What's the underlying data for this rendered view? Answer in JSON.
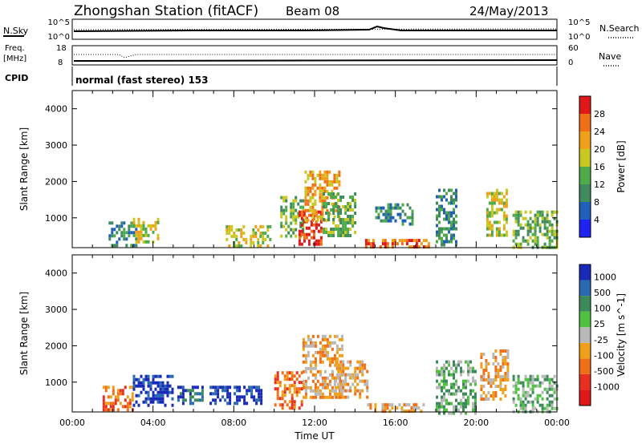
{
  "header": {
    "title": "Zhongshan Station (fitACF)",
    "beam": "Beam 08",
    "date": "24/May/2013"
  },
  "strip_labels": {
    "nsky": "N.Sky",
    "nsky_top": "10^5",
    "nsky_bottom": "10^0",
    "nsearch": "N.Search",
    "nsearch_top": "10^5",
    "nsearch_bottom": "10^0",
    "freq": "Freq.",
    "freq_unit": "[MHz]",
    "freq_top": "18",
    "freq_bottom": "8",
    "nave": "Nave",
    "nave_top": "60",
    "nave_bottom": "0",
    "cpid": "CPID",
    "mode": "normal (fast stereo) 153"
  },
  "chart_data": [
    {
      "type": "heatmap",
      "name_printed": "Power [dB]",
      "ylabel": "Slant Range [km]",
      "xlabel": "",
      "ylim": [
        180,
        4500
      ],
      "xlim": [
        0,
        24
      ],
      "yticks": [
        "1000",
        "2000",
        "3000",
        "4000"
      ],
      "colorbar": {
        "label": "Power [dB]",
        "ticks": [
          "4",
          "8",
          "12",
          "16",
          "20",
          "24",
          "28"
        ],
        "colors": [
          "#1e22f2",
          "#2060b8",
          "#3f8a5e",
          "#4faa4a",
          "#c8c820",
          "#f0a018",
          "#f07018",
          "#e01818"
        ]
      },
      "patches": [
        {
          "x0": 1.8,
          "x1": 3.2,
          "y0": 250,
          "y1": 900,
          "level": 2
        },
        {
          "x0": 3.0,
          "x1": 4.3,
          "y0": 300,
          "y1": 1000,
          "level": 4
        },
        {
          "x0": 7.6,
          "x1": 9.8,
          "y0": 250,
          "y1": 800,
          "level": 4
        },
        {
          "x0": 10.3,
          "x1": 11.4,
          "y0": 500,
          "y1": 1600,
          "level": 3
        },
        {
          "x0": 11.2,
          "x1": 12.3,
          "y0": 300,
          "y1": 1200,
          "level": 7
        },
        {
          "x0": 11.5,
          "x1": 13.2,
          "y0": 900,
          "y1": 2300,
          "level": 5
        },
        {
          "x0": 12.4,
          "x1": 14.0,
          "y0": 500,
          "y1": 1700,
          "level": 3
        },
        {
          "x0": 14.5,
          "x1": 17.8,
          "y0": 180,
          "y1": 420,
          "level": 6
        },
        {
          "x0": 15.0,
          "x1": 16.8,
          "y0": 800,
          "y1": 1400,
          "level": 2
        },
        {
          "x0": 18.0,
          "x1": 19.0,
          "y0": 300,
          "y1": 1800,
          "level": 2
        },
        {
          "x0": 20.5,
          "x1": 21.5,
          "y0": 500,
          "y1": 1800,
          "level": 4
        },
        {
          "x0": 21.8,
          "x1": 24.0,
          "y0": 180,
          "y1": 1200,
          "level": 3
        }
      ]
    },
    {
      "type": "heatmap",
      "ylabel": "Slant Range [km]",
      "xlabel": "Time UT",
      "ylim": [
        180,
        4500
      ],
      "xlim": [
        0,
        24
      ],
      "yticks": [
        "1000",
        "2000",
        "3000",
        "4000"
      ],
      "xticks": [
        "00:00",
        "04:00",
        "08:00",
        "12:00",
        "16:00",
        "20:00",
        "00:00"
      ],
      "colorbar": {
        "label": "Velocity [m s^-1]",
        "ticks": [
          "1000",
          "500",
          "100",
          "25",
          "-25",
          "-100",
          "-500",
          "-1000"
        ],
        "colors": [
          "#1a2ab8",
          "#2a6ab0",
          "#3c8a5a",
          "#50c040",
          "#b8b8b8",
          "#f0a018",
          "#f07018",
          "#e83020",
          "#e01818"
        ]
      },
      "patches": [
        {
          "x0": 1.5,
          "x1": 3.0,
          "y0": 250,
          "y1": 900,
          "level": 6
        },
        {
          "x0": 3.0,
          "x1": 5.0,
          "y0": 400,
          "y1": 1200,
          "level": 0
        },
        {
          "x0": 5.2,
          "x1": 6.4,
          "y0": 400,
          "y1": 900,
          "level": 1
        },
        {
          "x0": 6.8,
          "x1": 9.4,
          "y0": 400,
          "y1": 900,
          "level": 0
        },
        {
          "x0": 10.0,
          "x1": 11.4,
          "y0": 300,
          "y1": 1300,
          "level": 6
        },
        {
          "x0": 11.4,
          "x1": 13.4,
          "y0": 600,
          "y1": 2300,
          "level": 5
        },
        {
          "x0": 13.0,
          "x1": 14.6,
          "y0": 600,
          "y1": 1600,
          "level": 5
        },
        {
          "x0": 14.6,
          "x1": 17.4,
          "y0": 180,
          "y1": 420,
          "level": 5
        },
        {
          "x0": 18.0,
          "x1": 20.0,
          "y0": 180,
          "y1": 1600,
          "level": 3
        },
        {
          "x0": 20.2,
          "x1": 21.6,
          "y0": 500,
          "y1": 1900,
          "level": 5
        },
        {
          "x0": 21.8,
          "x1": 24.0,
          "y0": 180,
          "y1": 1200,
          "level": 3
        }
      ]
    }
  ]
}
